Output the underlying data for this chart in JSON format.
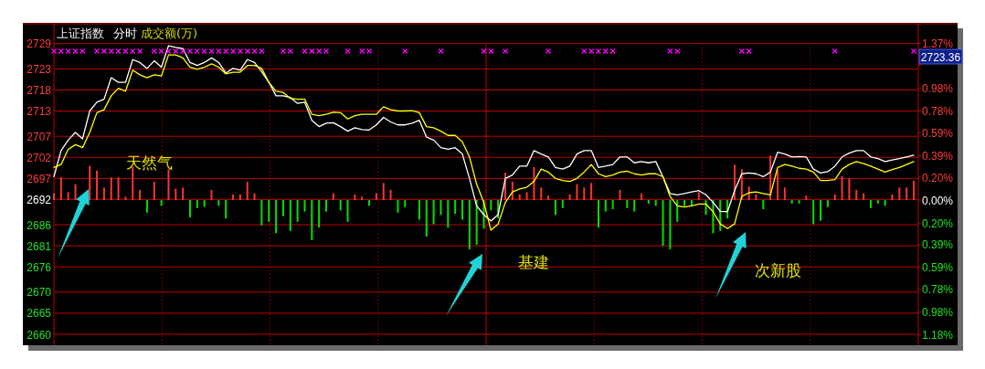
{
  "chart_data": {
    "type": "line",
    "title": "上证指数",
    "subtitle": "分时",
    "annotations": [
      "成交额(万)",
      "天然气",
      "基建",
      "次新股",
      "2723.36"
    ],
    "categories": [
      null,
      null,
      null,
      null,
      null,
      null,
      null,
      null,
      null,
      null,
      null,
      null,
      null,
      null,
      null,
      null,
      null,
      null,
      null,
      null,
      null,
      null,
      null,
      null,
      null,
      null,
      null,
      null,
      null,
      null,
      null,
      null,
      null,
      null,
      null,
      null,
      null,
      null,
      null,
      null,
      null,
      null,
      null,
      null,
      null,
      null,
      null,
      null,
      null,
      null,
      null,
      null,
      null,
      null,
      null,
      null,
      null,
      null,
      null,
      null,
      null,
      null,
      null,
      null,
      null,
      null,
      null,
      null,
      null,
      null,
      null,
      null,
      null,
      null,
      null,
      null,
      null,
      null,
      null,
      null,
      null,
      null,
      null,
      null,
      null,
      null,
      null,
      null,
      null,
      null,
      null,
      null,
      null,
      null,
      null,
      null,
      null,
      null,
      null,
      null,
      null,
      null,
      null,
      null,
      null,
      null,
      null,
      null,
      null,
      null,
      null,
      null,
      null,
      null,
      null,
      null,
      null,
      null,
      null,
      null,
      null
    ],
    "ylim": [
      2657.4,
      2729
    ],
    "yticks": [
      2660,
      2665,
      2670,
      2676,
      2681,
      2686,
      2692,
      2697,
      2702,
      2707,
      2713,
      2718,
      2723,
      2729
    ],
    "y2lim": [
      -1.27,
      1.37
    ],
    "y2ticks": [
      {
        "value": -1.18,
        "label": "1.18%"
      },
      {
        "value": -0.98,
        "label": "0.98%"
      },
      {
        "value": -0.78,
        "label": "0.78%"
      },
      {
        "value": -0.59,
        "label": "0.59%"
      },
      {
        "value": -0.39,
        "label": "0.39%"
      },
      {
        "value": -0.2,
        "label": "0.20%"
      },
      {
        "value": 0,
        "label": "0.00%"
      },
      {
        "value": 0.2,
        "label": "0.20%"
      },
      {
        "value": 0.39,
        "label": "0.39%"
      },
      {
        "value": 0.59,
        "label": "0.59%"
      },
      {
        "value": 0.78,
        "label": "0.78%"
      },
      {
        "value": 0.98,
        "label": "0.98%"
      },
      {
        "value": 1.18,
        "label": null
      },
      {
        "value": 1.37,
        "label": "1.37%"
      }
    ],
    "grid": true,
    "marker": "none",
    "series": [
      {
        "type": "bar",
        "axis": "y2",
        "values": [
          0.06,
          0.2,
          0.07,
          0.14,
          null,
          0.3,
          0.26,
          0.11,
          0.2,
          0.2,
          0.03,
          0.29,
          0.09,
          -0.11,
          0.16,
          -0.05,
          0.27,
          0.1,
          0.11,
          -0.15,
          -0.07,
          -0.06,
          0.09,
          -0.05,
          -0.16,
          0.05,
          0.05,
          0.16,
          0.06,
          -0.22,
          -0.19,
          -0.29,
          -0.14,
          -0.27,
          -0.19,
          -0.1,
          -0.35,
          -0.24,
          -0.1,
          0.06,
          -0.09,
          -0.19,
          0.05,
          0.03,
          -0.05,
          0.06,
          0.15,
          0.09,
          -0.11,
          -0.06,
          null,
          -0.17,
          -0.32,
          -0.21,
          -0.13,
          -0.24,
          -0.12,
          -0.17,
          -0.43,
          -0.39,
          -0.25,
          -0.09,
          -0.16,
          0.24,
          0.16,
          0.05,
          0.07,
          0.29,
          0.11,
          0.04,
          -0.13,
          -0.07,
          0.05,
          0.14,
          0.11,
          0.15,
          -0.24,
          -0.1,
          -0.08,
          0.09,
          -0.07,
          -0.1,
          0.06,
          -0.03,
          -0.05,
          -0.4,
          -0.43,
          -0.19,
          -0.05,
          -0.05,
          0.07,
          -0.13,
          -0.29,
          -0.27,
          -0.16,
          0.31,
          0.27,
          0.12,
          0.05,
          -0.08,
          0.39,
          0.27,
          0.11,
          -0.03,
          -0.03,
          0.04,
          -0.21,
          -0.18,
          -0.06,
          0.05,
          0.21,
          0.19,
          0.09,
          0.06,
          -0.07,
          -0.03,
          -0.05,
          0.05,
          0.11,
          0.11,
          0.17
        ],
        "colors": [
          "#ff3232",
          "#ff3232",
          "#ff3232",
          "#ff3232",
          null,
          "#ff3232",
          "#ff3232",
          "#ff3232",
          "#ff3232",
          "#ff3232",
          "#ff3232",
          "#ff3232",
          "#ff3232",
          "#00e000",
          "#ff3232",
          "#00e000",
          "#ff3232",
          "#ff3232",
          "#ff3232",
          "#00e000",
          "#00e000",
          "#00e000",
          "#ff3232",
          "#00e000",
          "#00e000",
          "#ff3232",
          "#ff3232",
          "#ff3232",
          "#ff3232",
          "#00e000",
          "#00e000",
          "#00e000",
          "#00e000",
          "#00e000",
          "#00e000",
          "#00e000",
          "#00e000",
          "#00e000",
          "#00e000",
          "#ff3232",
          "#00e000",
          "#00e000",
          "#ff3232",
          "#ff3232",
          "#00e000",
          "#ff3232",
          "#ff3232",
          "#ff3232",
          "#00e000",
          "#00e000",
          null,
          "#00e000",
          "#00e000",
          "#00e000",
          "#00e000",
          "#00e000",
          "#00e000",
          "#00e000",
          "#00e000",
          "#00e000",
          "#00e000",
          "#00e000",
          "#00e000",
          "#ff3232",
          "#ff3232",
          "#ff3232",
          "#ff3232",
          "#ff3232",
          "#ff3232",
          "#ff3232",
          "#00e000",
          "#00e000",
          "#ff3232",
          "#ff3232",
          "#ff3232",
          "#ff3232",
          "#00e000",
          "#00e000",
          "#00e000",
          "#ff3232",
          "#00e000",
          "#00e000",
          "#ff3232",
          "#00e000",
          "#00e000",
          "#00e000",
          "#00e000",
          "#00e000",
          "#00e000",
          "#00e000",
          "#ff3232",
          "#00e000",
          "#00e000",
          "#00e000",
          "#00e000",
          "#ff3232",
          "#ff3232",
          "#ff3232",
          "#ff3232",
          "#00e000",
          "#ff3232",
          "#ff3232",
          "#ff3232",
          "#00e000",
          "#00e000",
          "#ff3232",
          "#00e000",
          "#00e000",
          "#00e000",
          "#ff3232",
          "#ff3232",
          "#ff3232",
          "#ff3232",
          "#ff3232",
          "#00e000",
          "#00e000",
          "#00e000",
          "#ff3232",
          "#ff3232",
          "#ff3232",
          "#ff3232"
        ]
      },
      {
        "color": "#ffffff",
        "values": [
          2697.4,
          2703.6,
          2706.1,
          2707.9,
          2706.4,
          2713.0,
          2715.1,
          2715.8,
          2720.9,
          2719.8,
          2719.8,
          2725.2,
          2724.5,
          2723.1,
          2724.9,
          2723.4,
          2728.5,
          2728.1,
          2727.8,
          2724.5,
          2723.8,
          2724.5,
          2725.6,
          2724.5,
          2722.0,
          2723.1,
          2722.7,
          2725.2,
          2724.5,
          2722.3,
          2719.8,
          2716.6,
          2716.6,
          2716.2,
          2714.8,
          2715.1,
          2710.8,
          2709.3,
          2710.1,
          2710.2,
          2709.3,
          2708.2,
          2709.0,
          2708.6,
          2708.5,
          2709.7,
          2711.5,
          2710.4,
          2709.7,
          2709.7,
          2710.1,
          2710.8,
          2706.8,
          2706.1,
          2704.3,
          2703.9,
          2704.3,
          2702.8,
          2697.0,
          2690.5,
          2688.4,
          2686.9,
          2688.4,
          2697.0,
          2697.8,
          2699.9,
          2699.9,
          2703.6,
          2702.8,
          2702.1,
          2699.6,
          2699.2,
          2699.9,
          2702.8,
          2703.6,
          2703.6,
          2699.6,
          2699.9,
          2700.3,
          2702.1,
          2702.1,
          2700.7,
          2701.0,
          2700.7,
          2701.0,
          2697.4,
          2693.4,
          2693.1,
          2693.4,
          2693.8,
          2694.1,
          2693.1,
          2691.3,
          2689.2,
          2689.1,
          2694.1,
          2698.1,
          2698.3,
          2698.1,
          2697.4,
          2698.5,
          2703.2,
          2702.8,
          2702.1,
          2702.2,
          2702.1,
          2699.2,
          2698.3,
          2698.6,
          2699.9,
          2702.1,
          2703.0,
          2703.6,
          2703.6,
          2702.1,
          2701.7,
          2701.0,
          2701.4,
          2701.7,
          2702.1,
          2702.5
        ]
      },
      {
        "color": "#ffff00",
        "values": [
          2699.6,
          2700.3,
          2703.9,
          2705.0,
          2704.3,
          2707.9,
          2712.6,
          2713.3,
          2716.6,
          2718.4,
          2717.7,
          2722.7,
          2721.6,
          2720.9,
          2721.6,
          2721.3,
          2726.3,
          2726.3,
          2725.6,
          2723.4,
          2722.9,
          2723.4,
          2724.2,
          2723.4,
          2721.8,
          2722.2,
          2722.2,
          2723.8,
          2723.8,
          2723.1,
          2719.8,
          2717.7,
          2717.4,
          2716.0,
          2715.8,
          2715.8,
          2712.2,
          2711.9,
          2712.2,
          2712.7,
          2712.6,
          2711.1,
          2711.9,
          2712.2,
          2712.2,
          2712.2,
          2714.0,
          2713.3,
          2713.0,
          2713.0,
          2713.1,
          2712.6,
          2709.3,
          2709.0,
          2708.2,
          2707.2,
          2707.2,
          2705.7,
          2702.1,
          2695.6,
          2691.3,
          2684.7,
          2686.2,
          2691.3,
          2693.8,
          2694.5,
          2694.9,
          2696.3,
          2699.2,
          2698.5,
          2697.0,
          2696.5,
          2696.3,
          2697.0,
          2698.5,
          2700.3,
          2698.1,
          2697.4,
          2697.8,
          2698.5,
          2698.7,
          2698.1,
          2697.8,
          2698.1,
          2698.1,
          2697.4,
          2692.7,
          2690.5,
          2690.2,
          2690.5,
          2690.9,
          2690.9,
          2689.1,
          2686.2,
          2685.1,
          2686.2,
          2692.7,
          2693.6,
          2693.8,
          2693.4,
          2693.1,
          2699.6,
          2700.3,
          2699.9,
          2699.4,
          2699.2,
          2698.5,
          2696.5,
          2696.5,
          2696.7,
          2699.2,
          2700.3,
          2701.0,
          2700.5,
          2699.9,
          2699.2,
          2698.5,
          2699.1,
          2699.6,
          2700.3,
          2701.0
        ]
      },
      {
        "type": "scatter",
        "marker": "cross",
        "color": "#ff00ff",
        "values": [
          2727.2,
          2727.2,
          2727.2,
          2727.2,
          2727.2,
          null,
          2727.2,
          2727.2,
          2727.2,
          2727.2,
          2727.2,
          2727.2,
          2727.2,
          null,
          2727.2,
          2727.2,
          2727.2,
          2727.2,
          2727.2,
          2727.2,
          2727.2,
          2727.2,
          2727.2,
          2727.2,
          2727.2,
          2727.2,
          2727.2,
          2727.2,
          2727.2,
          2727.2,
          null,
          null,
          2727.2,
          2727.2,
          null,
          2727.2,
          2727.2,
          2727.2,
          2727.2,
          null,
          null,
          2727.2,
          null,
          2727.2,
          2727.2,
          null,
          null,
          null,
          null,
          2727.2,
          null,
          null,
          null,
          null,
          2727.2,
          null,
          null,
          null,
          null,
          null,
          2727.2,
          2727.2,
          null,
          2727.2,
          null,
          null,
          null,
          null,
          null,
          2727.2,
          null,
          null,
          null,
          null,
          2727.2,
          2727.2,
          2727.2,
          2727.2,
          2727.2,
          null,
          null,
          null,
          null,
          null,
          null,
          null,
          2727.2,
          2727.2,
          null,
          null,
          null,
          null,
          null,
          null,
          null,
          null,
          2727.2,
          2727.2,
          null,
          null,
          null,
          null,
          null,
          null,
          null,
          null,
          null,
          null,
          null,
          2727.2,
          null,
          null,
          null,
          null,
          null,
          null,
          null,
          null,
          null,
          null,
          2727.2
        ]
      }
    ]
  }
}
